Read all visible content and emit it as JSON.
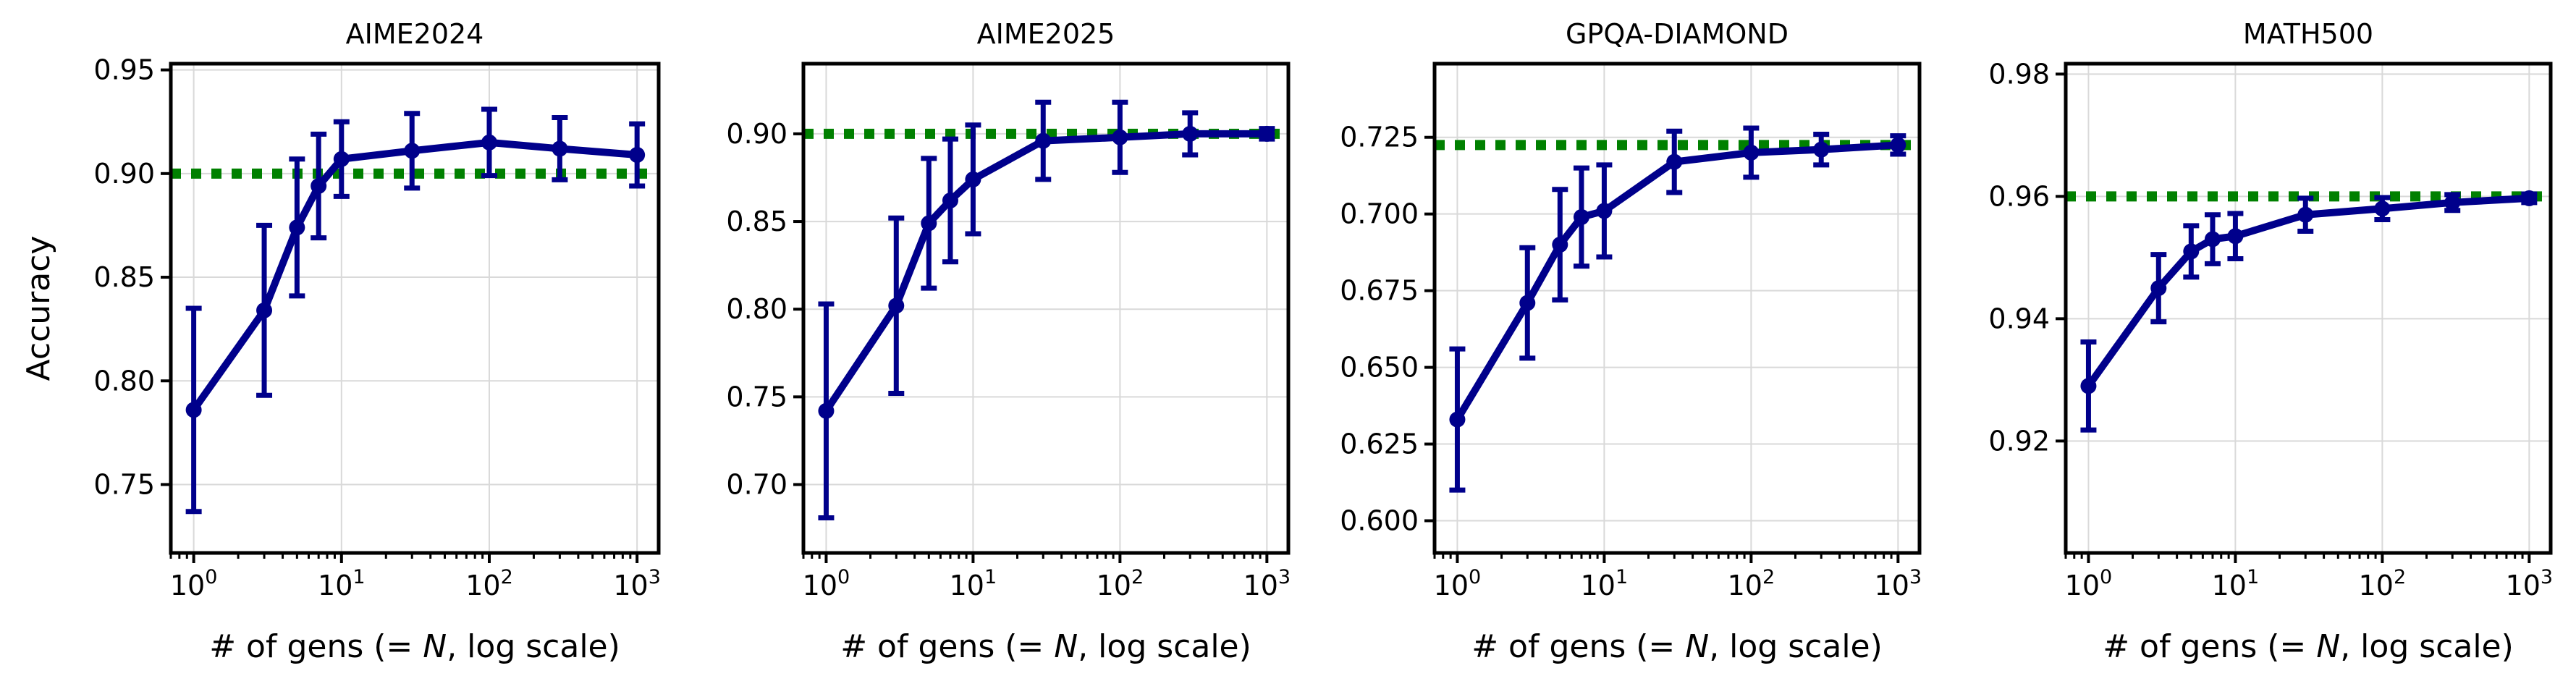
{
  "chart_data": [
    {
      "type": "line",
      "title": "AIME2024",
      "xlabel": "# of gens (= N, log scale)",
      "ylabel": "Accuracy",
      "xscale": "log",
      "xlim": [
        0.7,
        1400
      ],
      "ylim": [
        0.717,
        0.953
      ],
      "yticks": [
        0.75,
        0.8,
        0.85,
        0.9,
        0.95
      ],
      "ytick_labels": [
        "0.75",
        "0.80",
        "0.85",
        "0.90",
        "0.95"
      ],
      "xticks": [
        1,
        10,
        100,
        1000
      ],
      "xtick_labels": [
        "10^0",
        "10^1",
        "10^2",
        "10^3"
      ],
      "grid": true,
      "reference_line": {
        "y": 0.9,
        "color": "#008000",
        "style": "dotted"
      },
      "series": [
        {
          "name": "accuracy",
          "color": "#00008b",
          "x": [
            1,
            3,
            5,
            7,
            10,
            30,
            100,
            300,
            1000
          ],
          "y": [
            0.786,
            0.834,
            0.874,
            0.894,
            0.907,
            0.911,
            0.915,
            0.912,
            0.909
          ],
          "err": [
            0.049,
            0.041,
            0.033,
            0.025,
            0.018,
            0.018,
            0.016,
            0.015,
            0.015
          ]
        }
      ]
    },
    {
      "type": "line",
      "title": "AIME2025",
      "xlabel": "# of gens (= N, log scale)",
      "ylabel": "",
      "xscale": "log",
      "xlim": [
        0.7,
        1400
      ],
      "ylim": [
        0.661,
        0.94
      ],
      "yticks": [
        0.7,
        0.75,
        0.8,
        0.85,
        0.9
      ],
      "ytick_labels": [
        "0.70",
        "0.75",
        "0.80",
        "0.85",
        "0.90"
      ],
      "xticks": [
        1,
        10,
        100,
        1000
      ],
      "xtick_labels": [
        "10^0",
        "10^1",
        "10^2",
        "10^3"
      ],
      "grid": true,
      "reference_line": {
        "y": 0.9,
        "color": "#008000",
        "style": "dotted"
      },
      "series": [
        {
          "name": "accuracy",
          "color": "#00008b",
          "x": [
            1,
            3,
            5,
            7,
            10,
            30,
            100,
            300,
            1000
          ],
          "y": [
            0.742,
            0.802,
            0.849,
            0.862,
            0.874,
            0.896,
            0.898,
            0.9,
            0.9
          ],
          "err": [
            0.061,
            0.05,
            0.037,
            0.035,
            0.031,
            0.022,
            0.02,
            0.012,
            0.003
          ]
        }
      ]
    },
    {
      "type": "line",
      "title": "GPQA-DIAMOND",
      "xlabel": "# of gens (= N, log scale)",
      "ylabel": "",
      "xscale": "log",
      "xlim": [
        0.7,
        1400
      ],
      "ylim": [
        0.5895,
        0.749
      ],
      "yticks": [
        0.6,
        0.625,
        0.65,
        0.675,
        0.7,
        0.725
      ],
      "ytick_labels": [
        "0.600",
        "0.625",
        "0.650",
        "0.675",
        "0.700",
        "0.725"
      ],
      "xticks": [
        1,
        10,
        100,
        1000
      ],
      "xtick_labels": [
        "10^0",
        "10^1",
        "10^2",
        "10^3"
      ],
      "grid": true,
      "reference_line": {
        "y": 0.7225,
        "color": "#008000",
        "style": "dotted"
      },
      "series": [
        {
          "name": "accuracy",
          "color": "#00008b",
          "x": [
            1,
            3,
            5,
            7,
            10,
            30,
            100,
            300,
            1000
          ],
          "y": [
            0.633,
            0.671,
            0.69,
            0.699,
            0.701,
            0.717,
            0.72,
            0.721,
            0.7225
          ],
          "err": [
            0.023,
            0.018,
            0.018,
            0.016,
            0.015,
            0.01,
            0.008,
            0.005,
            0.003
          ]
        }
      ]
    },
    {
      "type": "line",
      "title": "MATH500",
      "xlabel": "# of gens (= N, log scale)",
      "ylabel": "",
      "xscale": "log",
      "xlim": [
        0.7,
        1400
      ],
      "ylim": [
        0.9017,
        0.9817
      ],
      "yticks": [
        0.92,
        0.94,
        0.96,
        0.98
      ],
      "ytick_labels": [
        "0.92",
        "0.94",
        "0.96",
        "0.98"
      ],
      "xticks": [
        1,
        10,
        100,
        1000
      ],
      "xtick_labels": [
        "10^0",
        "10^1",
        "10^2",
        "10^3"
      ],
      "grid": true,
      "reference_line": {
        "y": 0.96,
        "color": "#008000",
        "style": "dotted"
      },
      "series": [
        {
          "name": "accuracy",
          "color": "#00008b",
          "x": [
            1,
            3,
            5,
            7,
            10,
            30,
            100,
            300,
            1000
          ],
          "y": [
            0.929,
            0.945,
            0.951,
            0.953,
            0.9535,
            0.957,
            0.958,
            0.959,
            0.9597
          ],
          "err": [
            0.0072,
            0.0055,
            0.0042,
            0.004,
            0.0037,
            0.0027,
            0.0018,
            0.0013,
            0.0007
          ]
        }
      ]
    }
  ]
}
